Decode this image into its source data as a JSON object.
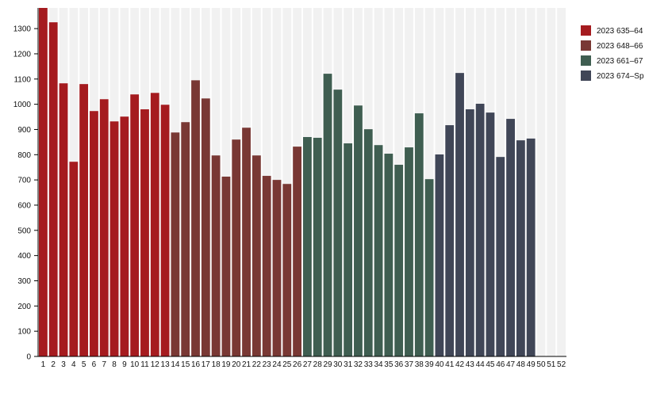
{
  "chart_data": {
    "type": "bar",
    "title": "",
    "xlabel": "",
    "ylabel": "",
    "ylim": [
      0,
      1382
    ],
    "yticks": [
      0,
      100,
      200,
      300,
      400,
      500,
      600,
      700,
      800,
      900,
      1000,
      1100,
      1200,
      1300
    ],
    "grid": false,
    "legend_position": "top-right",
    "categories": [
      "1",
      "2",
      "3",
      "4",
      "5",
      "6",
      "7",
      "8",
      "9",
      "10",
      "11",
      "12",
      "13",
      "14",
      "15",
      "16",
      "17",
      "18",
      "19",
      "20",
      "21",
      "22",
      "23",
      "24",
      "25",
      "26",
      "27",
      "28",
      "29",
      "30",
      "31",
      "32",
      "33",
      "34",
      "35",
      "36",
      "37",
      "38",
      "39",
      "40",
      "41",
      "42",
      "43",
      "44",
      "45",
      "46",
      "47",
      "48",
      "49",
      "50",
      "51",
      "52"
    ],
    "values": [
      1382,
      1325,
      1083,
      772,
      1080,
      973,
      1020,
      932,
      951,
      1039,
      980,
      1045,
      998,
      888,
      929,
      1095,
      1023,
      797,
      713,
      860,
      907,
      797,
      716,
      700,
      684,
      832,
      870,
      867,
      1121,
      1058,
      845,
      995,
      901,
      838,
      804,
      760,
      829,
      964,
      703,
      801,
      917,
      1124,
      980,
      1002,
      967,
      791,
      942,
      857,
      864,
      null,
      null,
      null
    ],
    "series": [
      {
        "name": "2023 635–64",
        "color": "#a51b1f",
        "weeks": [
          1,
          13
        ]
      },
      {
        "name": "2023 648–66",
        "color": "#793834",
        "weeks": [
          14,
          26
        ]
      },
      {
        "name": "2023 661–67",
        "color": "#3f5e51",
        "weeks": [
          27,
          39
        ]
      },
      {
        "name": "2023 674–Sp",
        "color": "#404657",
        "weeks": [
          40,
          52
        ]
      }
    ],
    "background_band_color": "#f1f1f1"
  }
}
